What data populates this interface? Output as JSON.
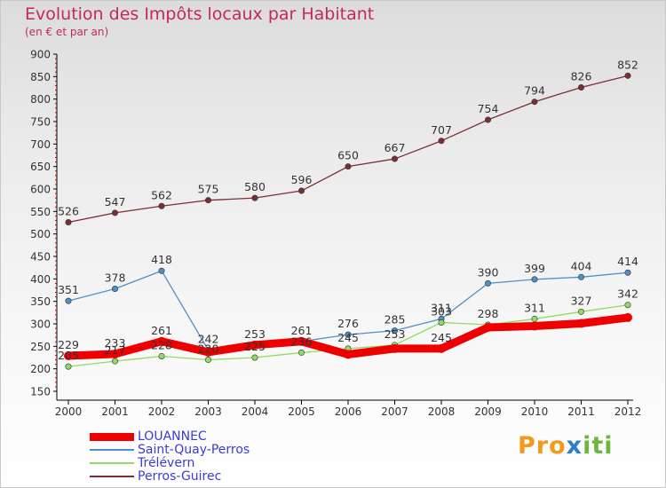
{
  "title": "Evolution des Impôts locaux par Habitant",
  "subtitle": "(en € et par an)",
  "brand": {
    "part1": "Pro",
    "part2": "x",
    "part3": "iti"
  },
  "chart_data": {
    "type": "line",
    "title": "Evolution des Impôts locaux par Habitant",
    "subtitle": "(en € et par an)",
    "xlabel": "",
    "ylabel": "",
    "x": [
      "2000",
      "2001",
      "2002",
      "2003",
      "2004",
      "2005",
      "2006",
      "2007",
      "2008",
      "2009",
      "2010",
      "2011",
      "2012"
    ],
    "ylim": [
      150,
      900
    ],
    "yticks": [
      150,
      200,
      250,
      300,
      350,
      400,
      450,
      500,
      550,
      600,
      650,
      700,
      750,
      800,
      850,
      900
    ],
    "grid": false,
    "legend_position": "bottom-left",
    "series": [
      {
        "name": "LOUANNEC",
        "color": "#ee0000",
        "line_width": 9,
        "values": [
          229,
          233,
          261,
          237,
          253,
          261,
          232,
          245,
          245,
          292,
          295,
          301,
          314
        ],
        "labels": [
          "229",
          "233",
          "261",
          "",
          "",
          "",
          "",
          "",
          "245",
          "",
          "",
          "",
          ""
        ]
      },
      {
        "name": "Saint-Quay-Perros",
        "color": "#4f8fc8",
        "line_width": 1.3,
        "values": [
          351,
          378,
          418,
          242,
          253,
          261,
          276,
          285,
          311,
          390,
          399,
          404,
          414
        ],
        "labels": [
          "351",
          "378",
          "418",
          "242",
          "253",
          "261",
          "276",
          "285",
          "311",
          "390",
          "399",
          "404",
          "414"
        ]
      },
      {
        "name": "Trélévern",
        "color": "#8fdc62",
        "line_width": 1.3,
        "values": [
          205,
          217,
          228,
          220,
          225,
          236,
          245,
          253,
          303,
          298,
          311,
          327,
          342
        ],
        "labels": [
          "205",
          "217",
          "228",
          "220",
          "225",
          "236",
          "245",
          "253",
          "303",
          "298",
          "311",
          "327",
          "342"
        ]
      },
      {
        "name": "Perros-Guirec",
        "color": "#7b2f35",
        "line_width": 1.3,
        "values": [
          526,
          547,
          562,
          575,
          580,
          596,
          650,
          667,
          707,
          754,
          794,
          826,
          852
        ],
        "labels": [
          "526",
          "547",
          "562",
          "575",
          "580",
          "596",
          "650",
          "667",
          "707",
          "754",
          "794",
          "826",
          "852"
        ]
      }
    ]
  }
}
